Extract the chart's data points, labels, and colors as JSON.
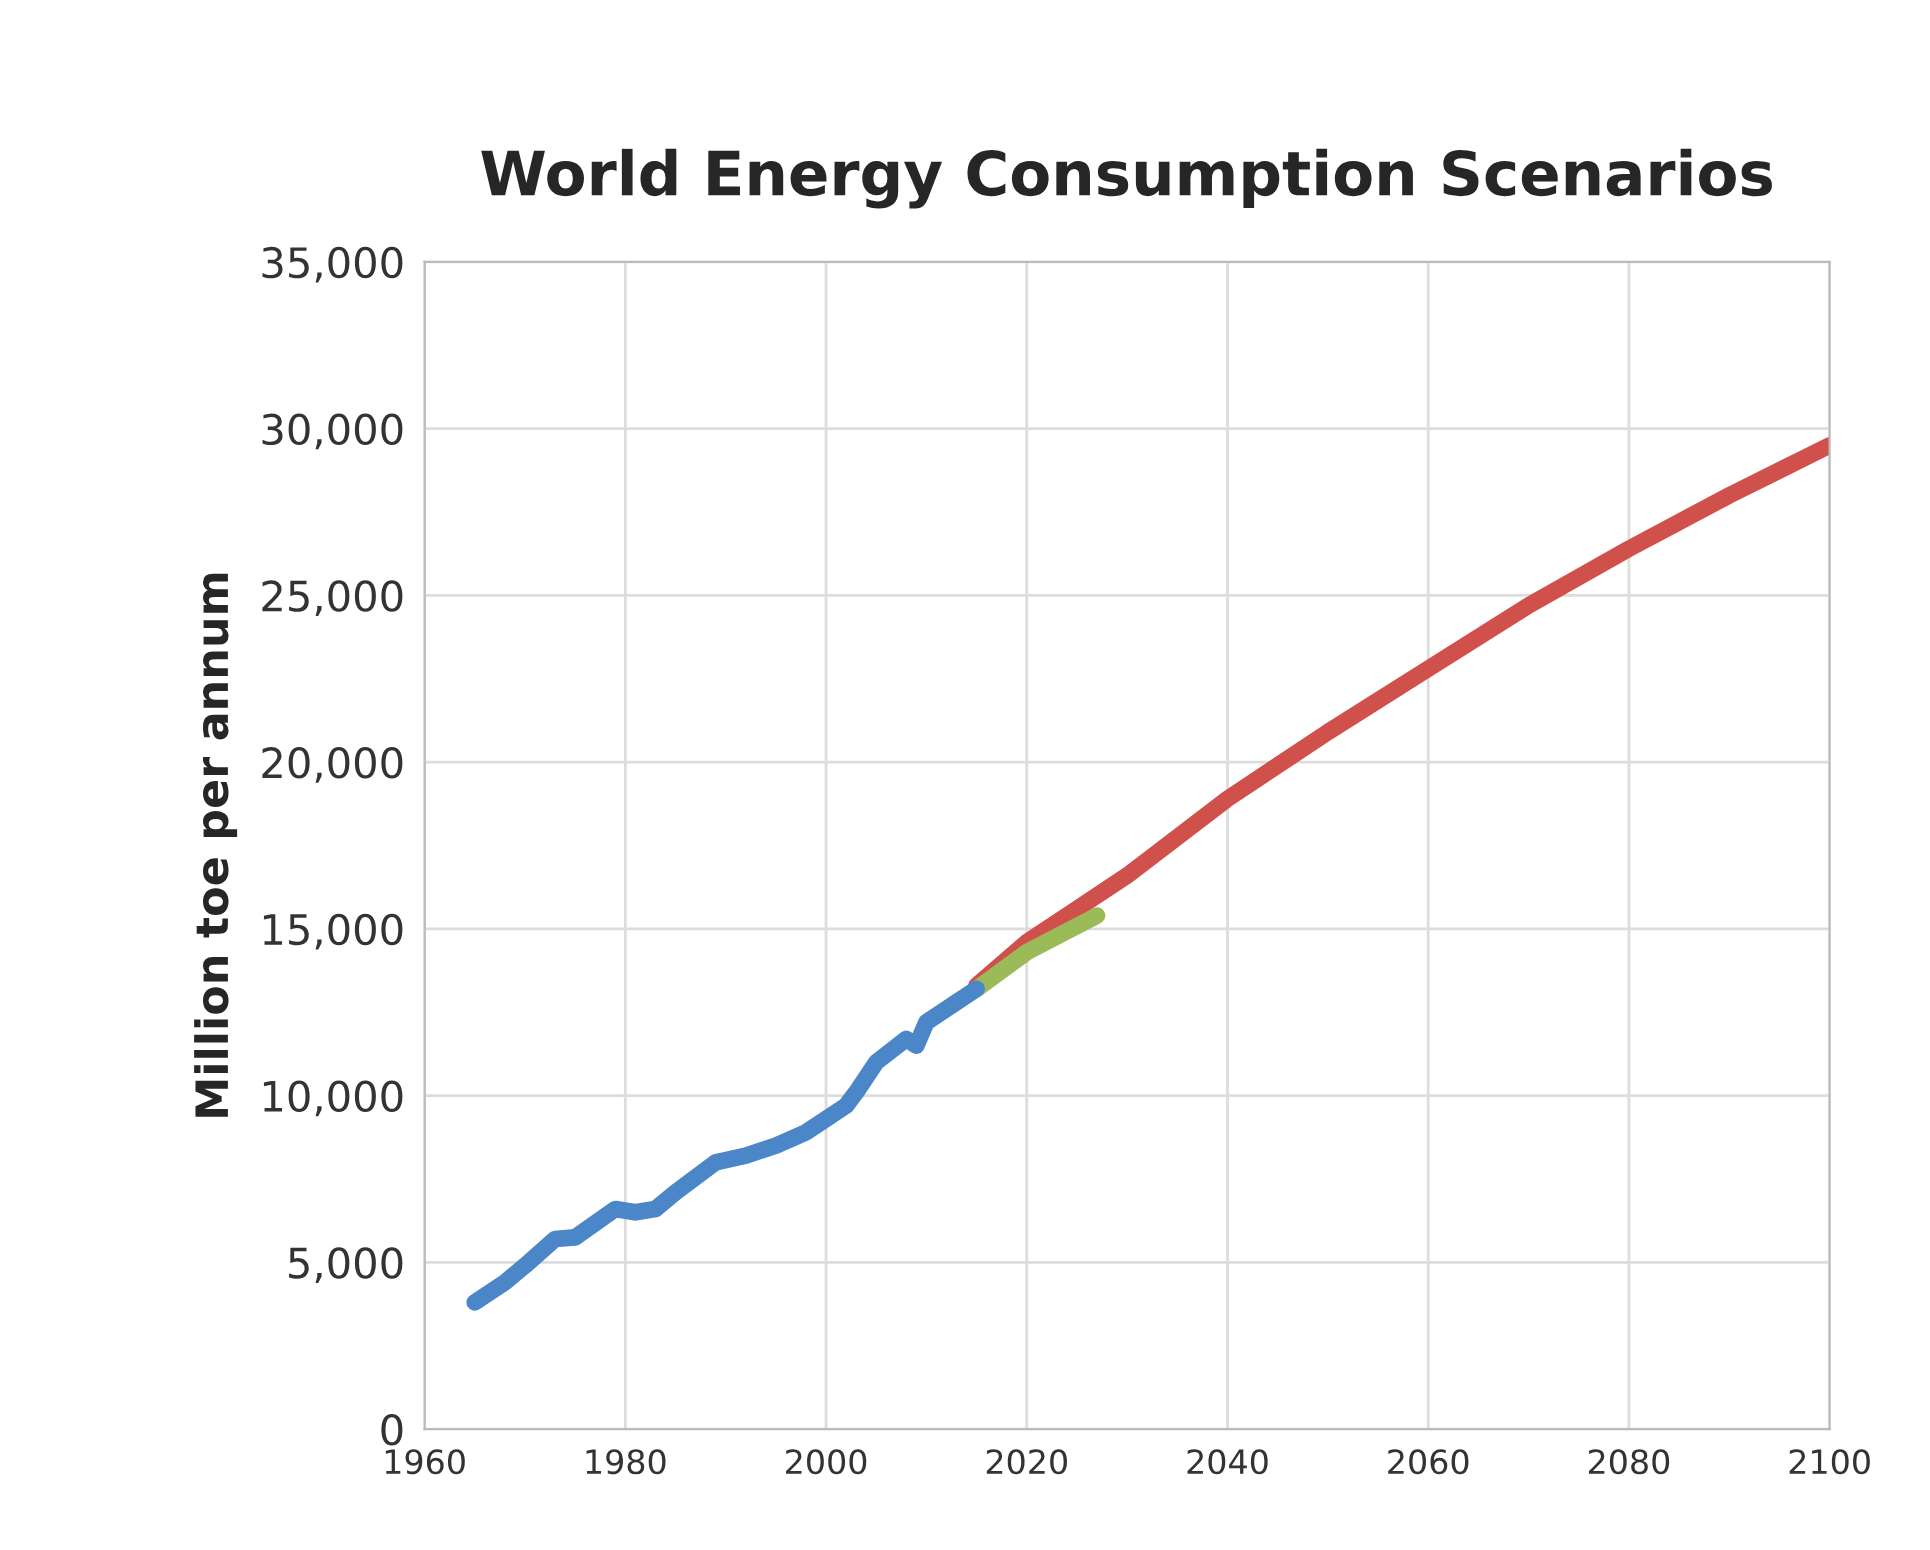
{
  "chart_data": {
    "type": "line",
    "title": "World Energy Consumption Scenarios",
    "ylabel": "Million toe per annum",
    "xlim": [
      1960,
      2100
    ],
    "xticks": [
      1960,
      1980,
      2000,
      2020,
      2040,
      2060,
      2080,
      2100
    ],
    "ylim": [
      0,
      35000
    ],
    "yticks": [
      {
        "value": 0,
        "label": "0"
      },
      {
        "value": 5000,
        "label": "5,000"
      },
      {
        "value": 10000,
        "label": "10,000"
      },
      {
        "value": 15000,
        "label": "15,000"
      },
      {
        "value": 20000,
        "label": "20,000"
      },
      {
        "value": 25000,
        "label": "25,000"
      },
      {
        "value": 30000,
        "label": "30,000"
      },
      {
        "value": 35000,
        "label": "35,000"
      }
    ],
    "grid": true,
    "legend": false,
    "series": [
      {
        "color": "#d0504b",
        "x": [
          2015,
          2020,
          2025,
          2030,
          2040,
          2050,
          2060,
          2070,
          2080,
          2090,
          2100
        ],
        "values": [
          13300,
          14600,
          15600,
          16600,
          18900,
          20900,
          22800,
          24700,
          26400,
          28000,
          29500
        ]
      },
      {
        "color": "#9bbb59",
        "x": [
          2015,
          2020,
          2027
        ],
        "values": [
          13200,
          14300,
          15400
        ]
      },
      {
        "color": "#4a86c8",
        "x": [
          1965,
          1968,
          1970,
          1973,
          1975,
          1979,
          1981,
          1983,
          1985,
          1989,
          1992,
          1995,
          1998,
          2000,
          2002,
          2003,
          2005,
          2008,
          2009,
          2010,
          2013,
          2015
        ],
        "values": [
          3800,
          4400,
          4900,
          5700,
          5750,
          6600,
          6500,
          6600,
          7100,
          8000,
          8200,
          8500,
          8900,
          9300,
          9700,
          10100,
          11000,
          11700,
          11500,
          12200,
          12800,
          13200
        ]
      }
    ]
  }
}
